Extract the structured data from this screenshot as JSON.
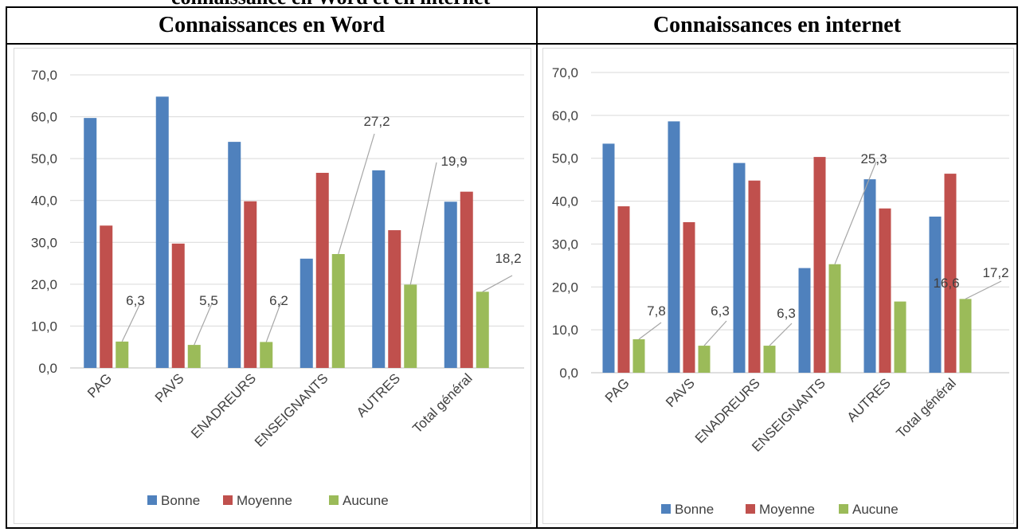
{
  "page_title": "connaissance en Word et en internet",
  "chart_data": [
    {
      "type": "bar",
      "title": "Connaissances en Word",
      "categories": [
        "PAG",
        "PAVS",
        "ENADREURS",
        "ENSEIGNANTS",
        "AUTRES",
        "Total général"
      ],
      "series": [
        {
          "name": "Bonne",
          "color": "#4F81BD",
          "values": [
            59.7,
            64.8,
            54.0,
            26.1,
            47.2,
            39.7
          ]
        },
        {
          "name": "Moyenne",
          "color": "#C0504D",
          "values": [
            34.0,
            29.7,
            39.8,
            46.6,
            32.9,
            42.1
          ]
        },
        {
          "name": "Aucune",
          "color": "#9BBB59",
          "values": [
            6.3,
            5.5,
            6.2,
            27.2,
            19.9,
            18.2
          ]
        }
      ],
      "data_labels": [
        {
          "series": "Aucune",
          "category": "PAG",
          "text": "6,3"
        },
        {
          "series": "Aucune",
          "category": "PAVS",
          "text": "5,5"
        },
        {
          "series": "Aucune",
          "category": "ENADREURS",
          "text": "6,2"
        },
        {
          "series": "Aucune",
          "category": "ENSEIGNANTS",
          "text": "27,2"
        },
        {
          "series": "Aucune",
          "category": "AUTRES",
          "text": "19,9"
        },
        {
          "series": "Aucune",
          "category": "Total général",
          "text": "18,2"
        }
      ],
      "y_ticks": [
        "0,0",
        "10,0",
        "20,0",
        "30,0",
        "40,0",
        "50,0",
        "60,0",
        "70,0"
      ],
      "ylim": [
        0,
        70
      ],
      "grid": true,
      "legend": "bottom"
    },
    {
      "type": "bar",
      "title": "Connaissances en internet",
      "categories": [
        "PAG",
        "PAVS",
        "ENADREURS",
        "ENSEIGNANTS",
        "AUTRES",
        "Total général"
      ],
      "series": [
        {
          "name": "Bonne",
          "color": "#4F81BD",
          "values": [
            53.4,
            58.6,
            48.9,
            24.4,
            45.1,
            36.4
          ]
        },
        {
          "name": "Moyenne",
          "color": "#C0504D",
          "values": [
            38.8,
            35.1,
            44.8,
            50.3,
            38.3,
            46.4
          ]
        },
        {
          "name": "Aucune",
          "color": "#9BBB59",
          "values": [
            7.8,
            6.3,
            6.3,
            25.3,
            16.6,
            17.2
          ]
        }
      ],
      "data_labels": [
        {
          "series": "Aucune",
          "category": "PAG",
          "text": "7,8"
        },
        {
          "series": "Aucune",
          "category": "PAVS",
          "text": "6,3"
        },
        {
          "series": "Aucune",
          "category": "ENADREURS",
          "text": "6,3"
        },
        {
          "series": "Aucune",
          "category": "ENSEIGNANTS",
          "text": "25,3"
        },
        {
          "series": "Aucune",
          "category": "AUTRES",
          "text": "16,6"
        },
        {
          "series": "Aucune",
          "category": "Total général",
          "text": "17,2"
        }
      ],
      "y_ticks": [
        "0,0",
        "10,0",
        "20,0",
        "30,0",
        "40,0",
        "50,0",
        "60,0",
        "70,0"
      ],
      "ylim": [
        0,
        70
      ],
      "grid": true,
      "legend": "bottom"
    }
  ]
}
